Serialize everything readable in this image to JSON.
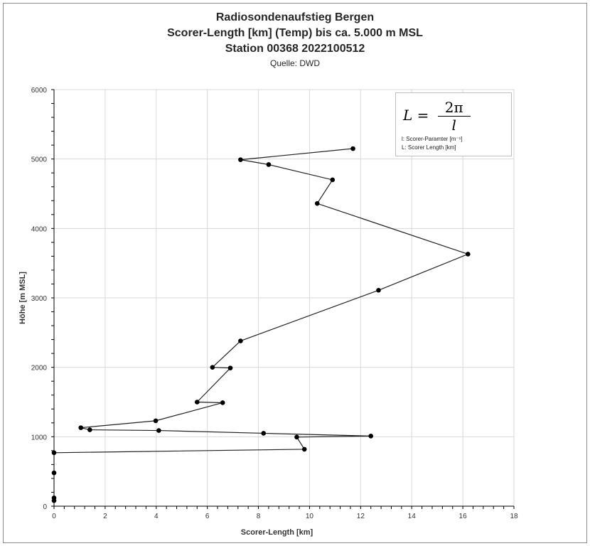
{
  "chart_data": {
    "type": "line",
    "title": "Radiosondenaufstieg Bergen",
    "subtitle": "Scorer-Length [km] (Temp) bis ca. 5.000 m MSL",
    "subtitle2": "Station 00368 2022100512",
    "source": "Quelle: DWD",
    "xlabel": "Scorer-Length [km]",
    "ylabel": "Höhe [m MSL]",
    "xlim": [
      0,
      18
    ],
    "ylim": [
      0,
      6000
    ],
    "xticks": [
      "0",
      "2",
      "4",
      "6",
      "8",
      "10",
      "12",
      "14",
      "16",
      "18"
    ],
    "yticks": [
      "0",
      "1000",
      "2000",
      "3000",
      "4000",
      "5000",
      "6000"
    ],
    "grid": true,
    "legend": {
      "placement": "top-right",
      "formula_lhs": "L =",
      "formula_num": "2π",
      "formula_den": "l",
      "line1": "l: Scorer-Paramter [m⁻¹]",
      "line2": "L: Scorer Length [km]"
    },
    "series": [
      {
        "name": "Scorer-Length",
        "points": [
          [
            0,
            80
          ],
          [
            0,
            120
          ],
          [
            0,
            480
          ],
          [
            0,
            770
          ],
          [
            9.8,
            820
          ],
          [
            9.5,
            995
          ],
          [
            12.4,
            1010
          ],
          [
            8.2,
            1050
          ],
          [
            4.1,
            1090
          ],
          [
            1.4,
            1100
          ],
          [
            1.05,
            1130
          ],
          [
            3.98,
            1230
          ],
          [
            6.6,
            1490
          ],
          [
            5.6,
            1500
          ],
          [
            6.9,
            1990
          ],
          [
            6.2,
            2000
          ],
          [
            7.3,
            2380
          ],
          [
            12.7,
            3110
          ],
          [
            16.2,
            3630
          ],
          [
            10.3,
            4360
          ],
          [
            10.9,
            4700
          ],
          [
            8.4,
            4920
          ],
          [
            7.3,
            4990
          ],
          [
            11.7,
            5150
          ]
        ]
      }
    ]
  }
}
